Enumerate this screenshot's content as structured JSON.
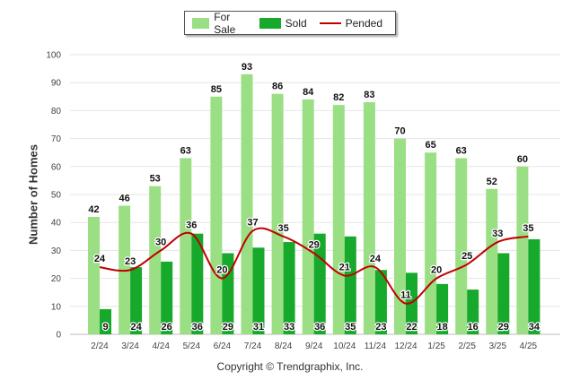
{
  "legend": {
    "for_sale": "For Sale",
    "sold": "Sold",
    "pended": "Pended"
  },
  "footer": {
    "copyright": "Copyright © Trendgraphix, Inc."
  },
  "colors": {
    "for_sale": "#9bdf85",
    "sold": "#16a92c",
    "pended": "#c00000",
    "grid": "#e6e6e6"
  },
  "chart_data": {
    "type": "bar",
    "title": "",
    "xlabel": "",
    "ylabel": "Number of Homes",
    "ylim": [
      0,
      100
    ],
    "yticks": [
      0,
      10,
      20,
      30,
      40,
      50,
      60,
      70,
      80,
      90,
      100
    ],
    "grid": true,
    "legend_position": "top-center",
    "categories": [
      "2/24",
      "3/24",
      "4/24",
      "5/24",
      "6/24",
      "7/24",
      "8/24",
      "9/24",
      "10/24",
      "11/24",
      "12/24",
      "1/25",
      "2/25",
      "3/25",
      "4/25"
    ],
    "series": [
      {
        "name": "For Sale",
        "kind": "bar",
        "values": [
          42,
          46,
          53,
          63,
          85,
          93,
          86,
          84,
          82,
          83,
          70,
          65,
          63,
          52,
          60
        ]
      },
      {
        "name": "Sold",
        "kind": "bar",
        "values": [
          9,
          24,
          26,
          36,
          29,
          31,
          33,
          36,
          35,
          23,
          22,
          18,
          16,
          29,
          34
        ]
      },
      {
        "name": "Pended",
        "kind": "line",
        "values": [
          24,
          23,
          30,
          36,
          20,
          37,
          35,
          29,
          21,
          24,
          11,
          20,
          25,
          33,
          35
        ]
      }
    ]
  }
}
